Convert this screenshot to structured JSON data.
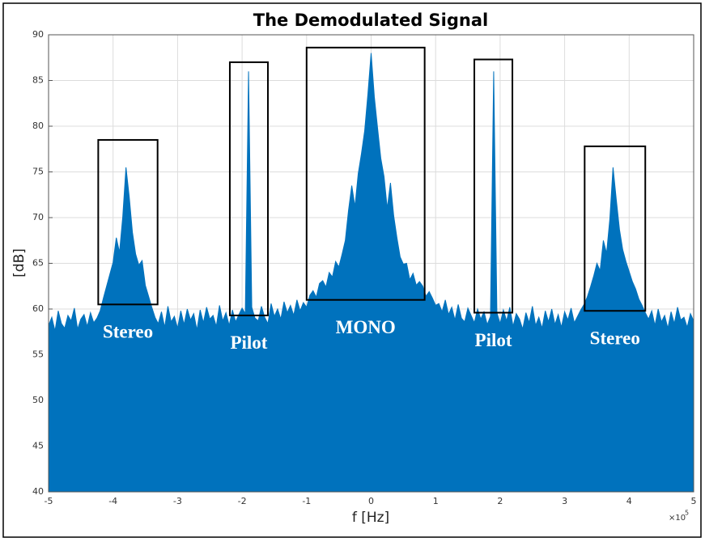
{
  "chart_data": {
    "type": "area",
    "title": "The Demodulated Signal",
    "x_label": "f [Hz]",
    "y_label": "[dB]",
    "x_multiplier": {
      "base": "×10",
      "exponent": "5"
    },
    "xlim": [
      -5,
      5
    ],
    "xticks": [
      -5,
      -4,
      -3,
      -2,
      -1,
      0,
      1,
      2,
      3,
      4,
      5
    ],
    "ylim": [
      40,
      90
    ],
    "yticks": [
      40,
      45,
      50,
      55,
      60,
      65,
      70,
      75,
      80,
      85,
      90
    ],
    "grid": true,
    "x": [
      -5.0,
      -4.95,
      -4.9,
      -4.85,
      -4.8,
      -4.75,
      -4.7,
      -4.65,
      -4.6,
      -4.55,
      -4.5,
      -4.45,
      -4.4,
      -4.35,
      -4.3,
      -4.25,
      -4.2,
      -4.15,
      -4.1,
      -4.05,
      -4.0,
      -3.95,
      -3.9,
      -3.85,
      -3.8,
      -3.75,
      -3.7,
      -3.65,
      -3.6,
      -3.55,
      -3.5,
      -3.45,
      -3.4,
      -3.35,
      -3.3,
      -3.25,
      -3.2,
      -3.15,
      -3.1,
      -3.05,
      -3.0,
      -2.95,
      -2.9,
      -2.85,
      -2.8,
      -2.75,
      -2.7,
      -2.65,
      -2.6,
      -2.55,
      -2.5,
      -2.45,
      -2.4,
      -2.35,
      -2.3,
      -2.25,
      -2.2,
      -2.15,
      -2.1,
      -2.05,
      -2.0,
      -1.95,
      -1.9,
      -1.85,
      -1.8,
      -1.75,
      -1.7,
      -1.65,
      -1.6,
      -1.55,
      -1.5,
      -1.45,
      -1.4,
      -1.35,
      -1.3,
      -1.25,
      -1.2,
      -1.15,
      -1.1,
      -1.05,
      -1.0,
      -0.95,
      -0.9,
      -0.85,
      -0.8,
      -0.75,
      -0.7,
      -0.65,
      -0.6,
      -0.55,
      -0.5,
      -0.45,
      -0.4,
      -0.35,
      -0.3,
      -0.25,
      -0.2,
      -0.15,
      -0.1,
      -0.05,
      0,
      0.05,
      0.1,
      0.15,
      0.2,
      0.25,
      0.3,
      0.35,
      0.4,
      0.45,
      0.5,
      0.55,
      0.6,
      0.65,
      0.7,
      0.75,
      0.8,
      0.85,
      0.9,
      0.95,
      1.0,
      1.05,
      1.1,
      1.15,
      1.2,
      1.25,
      1.3,
      1.35,
      1.4,
      1.45,
      1.5,
      1.55,
      1.6,
      1.65,
      1.7,
      1.75,
      1.8,
      1.85,
      1.9,
      1.95,
      2.0,
      2.05,
      2.1,
      2.15,
      2.2,
      2.25,
      2.3,
      2.35,
      2.4,
      2.45,
      2.5,
      2.55,
      2.6,
      2.65,
      2.7,
      2.75,
      2.8,
      2.85,
      2.9,
      2.95,
      3.0,
      3.05,
      3.1,
      3.15,
      3.2,
      3.25,
      3.3,
      3.35,
      3.4,
      3.45,
      3.5,
      3.55,
      3.6,
      3.65,
      3.7,
      3.75,
      3.8,
      3.85,
      3.9,
      3.95,
      4.0,
      4.05,
      4.1,
      4.15,
      4.2,
      4.25,
      4.3,
      4.35,
      4.4,
      4.45,
      4.5,
      4.55,
      4.6,
      4.65,
      4.7,
      4.75,
      4.8,
      4.85,
      4.9,
      4.95,
      5.0
    ],
    "series": [
      {
        "color": "#0072bd",
        "values": [
          58.2,
          59.1,
          57.6,
          59.8,
          58.4,
          57.9,
          59.3,
          58.7,
          60.1,
          57.8,
          58.9,
          59.4,
          58.1,
          59.6,
          58.5,
          59.0,
          59.8,
          61.2,
          62.5,
          63.8,
          65.1,
          67.8,
          66.2,
          70.1,
          75.5,
          72.3,
          68.4,
          66.0,
          64.8,
          65.3,
          62.6,
          61.4,
          60.2,
          59.1,
          58.4,
          59.7,
          58.0,
          60.3,
          58.6,
          59.2,
          57.9,
          59.8,
          58.3,
          60.0,
          58.8,
          59.5,
          57.7,
          59.9,
          58.5,
          60.2,
          58.9,
          59.3,
          58.1,
          60.4,
          58.7,
          59.6,
          58.2,
          59.9,
          58.6,
          59.4,
          60.1,
          59.5,
          86.0,
          60.2,
          59.0,
          58.7,
          60.3,
          59.1,
          58.4,
          60.6,
          59.2,
          60.0,
          58.9,
          60.8,
          59.6,
          60.4,
          59.3,
          61.0,
          59.8,
          60.7,
          60.2,
          61.5,
          62.0,
          61.3,
          62.8,
          63.1,
          62.4,
          64.0,
          63.5,
          65.2,
          64.6,
          66.0,
          67.5,
          70.8,
          73.5,
          71.2,
          74.8,
          77.0,
          79.5,
          83.5,
          88.0,
          83.2,
          79.8,
          76.5,
          74.5,
          71.0,
          73.8,
          70.2,
          67.8,
          65.7,
          64.9,
          65.0,
          63.2,
          63.9,
          62.6,
          63.0,
          62.5,
          61.4,
          61.9,
          61.2,
          60.4,
          60.6,
          59.7,
          61.0,
          59.4,
          60.2,
          58.8,
          60.5,
          59.0,
          58.6,
          60.1,
          59.3,
          58.5,
          60.0,
          58.9,
          59.7,
          58.3,
          59.2,
          86.0,
          59.6,
          58.4,
          59.9,
          58.7,
          60.2,
          58.1,
          59.5,
          58.9,
          57.8,
          59.6,
          58.5,
          60.3,
          58.2,
          59.1,
          57.9,
          59.8,
          58.6,
          60.0,
          58.3,
          59.4,
          58.0,
          59.7,
          58.8,
          60.1,
          58.5,
          59.2,
          59.9,
          60.5,
          61.3,
          62.4,
          63.6,
          65.0,
          64.2,
          67.5,
          66.1,
          69.8,
          75.5,
          72.0,
          68.7,
          66.5,
          65.2,
          64.1,
          63.0,
          62.2,
          61.1,
          60.4,
          59.6,
          58.9,
          59.8,
          58.2,
          60.0,
          58.6,
          59.3,
          57.9,
          59.7,
          58.4,
          60.2,
          58.8,
          59.1,
          58.0,
          59.5,
          58.7
        ]
      }
    ],
    "regions": [
      {
        "label": "Stereo",
        "x": [
          -4.23,
          -3.31
        ],
        "y": [
          60.5,
          78.5
        ]
      },
      {
        "label": "Pilot",
        "x": [
          -2.19,
          -1.6
        ],
        "y": [
          59.3,
          87.0
        ]
      },
      {
        "label": "MONO",
        "x": [
          -1.0,
          0.83
        ],
        "y": [
          61.0,
          88.6
        ]
      },
      {
        "label": "Pilot",
        "x": [
          1.6,
          2.19
        ],
        "y": [
          59.6,
          87.3
        ]
      },
      {
        "label": "Stereo",
        "x": [
          3.31,
          4.25
        ],
        "y": [
          59.8,
          77.8
        ]
      }
    ]
  }
}
